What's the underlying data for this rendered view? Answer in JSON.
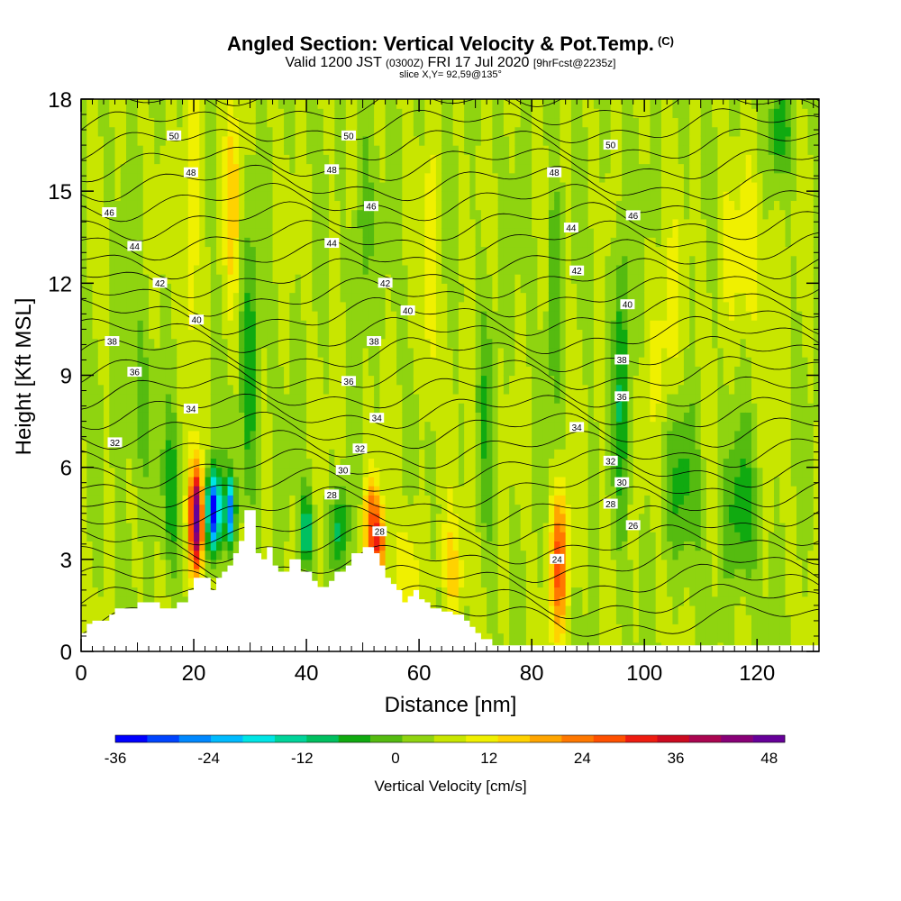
{
  "header": {
    "title": "Angled Section: Vertical Velocity & Pot.Temp.",
    "title_unit": "(C)",
    "valid_prefix": "Valid 1200 JST",
    "valid_utc": "(0300Z)",
    "valid_date": "FRI 17 Jul 2020",
    "forecast": "[9hrFcst@2235z]",
    "slice": "slice X,Y= 92,59@135°"
  },
  "colors": {
    "terrain": "#ffffff",
    "contour": "#000000",
    "scale": [
      "#0000ff",
      "#0044ff",
      "#0088ff",
      "#00bbff",
      "#00e5e5",
      "#00d49a",
      "#00c060",
      "#10aa10",
      "#55bb10",
      "#8fd410",
      "#c8e600",
      "#f0f000",
      "#ffd200",
      "#ffa500",
      "#ff7800",
      "#ff5000",
      "#ee1c10",
      "#cc0a20",
      "#aa0550",
      "#880077",
      "#660099"
    ]
  },
  "chart_data": {
    "type": "heatmap",
    "xlabel": "Distance [nm]",
    "ylabel": "Height [Kft MSL]",
    "xlim": [
      0,
      131
    ],
    "ylim": [
      0,
      18
    ],
    "xticks": [
      0,
      20,
      40,
      60,
      80,
      100,
      120
    ],
    "yticks": [
      0,
      3,
      6,
      9,
      12,
      15,
      18
    ],
    "colorbar": {
      "label": "Vertical Velocity [cm/s]",
      "min": -36,
      "max": 50,
      "step": 4,
      "ticks": [
        -36,
        -24,
        -12,
        0,
        12,
        24,
        36,
        48
      ]
    },
    "terrain_profile": {
      "x": [
        0,
        1,
        2,
        5,
        6,
        9,
        10,
        13,
        14,
        16,
        17,
        19,
        20,
        22,
        23,
        24,
        25,
        26,
        27,
        28,
        29,
        30,
        31,
        32,
        33,
        34,
        35,
        36,
        37,
        38,
        39,
        41,
        42,
        43,
        44,
        45,
        46,
        47,
        48,
        49,
        50,
        51,
        52,
        53,
        54,
        55,
        56,
        57,
        58,
        59,
        60,
        61,
        62,
        63,
        64,
        65,
        66,
        68,
        69,
        70,
        71,
        73,
        131
      ],
      "y": [
        0.6,
        0.9,
        1.0,
        1.2,
        1.4,
        1.4,
        1.6,
        1.6,
        1.4,
        1.4,
        1.6,
        2.0,
        2.4,
        2.4,
        2.0,
        2.4,
        2.6,
        2.8,
        3.2,
        3.6,
        4.6,
        4.6,
        3.2,
        3.0,
        3.4,
        2.8,
        2.6,
        2.6,
        3.0,
        3.0,
        2.6,
        2.3,
        2.1,
        2.1,
        2.3,
        2.6,
        2.6,
        2.8,
        3.2,
        3.2,
        3.4,
        3.4,
        3.2,
        2.8,
        2.4,
        2.2,
        2.0,
        1.6,
        1.8,
        2.0,
        1.7,
        1.6,
        1.4,
        1.4,
        1.3,
        1.3,
        1.2,
        1.0,
        0.8,
        0.6,
        0.4,
        0.2,
        0.2
      ]
    },
    "contour_levels": [
      24,
      26,
      28,
      30,
      32,
      34,
      36,
      38,
      40,
      42,
      44,
      46,
      48,
      50
    ],
    "contour_labels": [
      {
        "text": "50",
        "x": 16.5,
        "y": 16.8
      },
      {
        "text": "50",
        "x": 47.5,
        "y": 16.8
      },
      {
        "text": "50",
        "x": 94,
        "y": 16.5
      },
      {
        "text": "48",
        "x": 19.5,
        "y": 15.6
      },
      {
        "text": "48",
        "x": 44.5,
        "y": 15.7
      },
      {
        "text": "48",
        "x": 84,
        "y": 15.6
      },
      {
        "text": "46",
        "x": 5,
        "y": 14.3
      },
      {
        "text": "46",
        "x": 51.5,
        "y": 14.5
      },
      {
        "text": "46",
        "x": 98,
        "y": 14.2
      },
      {
        "text": "44",
        "x": 9.5,
        "y": 13.2
      },
      {
        "text": "44",
        "x": 44.5,
        "y": 13.3
      },
      {
        "text": "44",
        "x": 87,
        "y": 13.8
      },
      {
        "text": "42",
        "x": 14,
        "y": 12.0
      },
      {
        "text": "42",
        "x": 54,
        "y": 12.0
      },
      {
        "text": "42",
        "x": 88,
        "y": 12.4
      },
      {
        "text": "40",
        "x": 20.5,
        "y": 10.8
      },
      {
        "text": "40",
        "x": 58,
        "y": 11.1
      },
      {
        "text": "40",
        "x": 97,
        "y": 11.3
      },
      {
        "text": "38",
        "x": 5.5,
        "y": 10.1
      },
      {
        "text": "38",
        "x": 52,
        "y": 10.1
      },
      {
        "text": "38",
        "x": 96,
        "y": 9.5
      },
      {
        "text": "36",
        "x": 9.5,
        "y": 9.1
      },
      {
        "text": "36",
        "x": 47.5,
        "y": 8.8
      },
      {
        "text": "36",
        "x": 96,
        "y": 8.3
      },
      {
        "text": "34",
        "x": 19.5,
        "y": 7.9
      },
      {
        "text": "34",
        "x": 52.5,
        "y": 7.6
      },
      {
        "text": "34",
        "x": 88,
        "y": 7.3
      },
      {
        "text": "32",
        "x": 6,
        "y": 6.8
      },
      {
        "text": "32",
        "x": 49.5,
        "y": 6.6
      },
      {
        "text": "32",
        "x": 94,
        "y": 6.2
      },
      {
        "text": "30",
        "x": 46.5,
        "y": 5.9
      },
      {
        "text": "30",
        "x": 96,
        "y": 5.5
      },
      {
        "text": "28",
        "x": 44.5,
        "y": 5.1
      },
      {
        "text": "28",
        "x": 53,
        "y": 3.9
      },
      {
        "text": "28",
        "x": 94,
        "y": 4.8
      },
      {
        "text": "26",
        "x": 98,
        "y": 4.1
      },
      {
        "text": "24",
        "x": 84.5,
        "y": 3.0
      }
    ]
  }
}
